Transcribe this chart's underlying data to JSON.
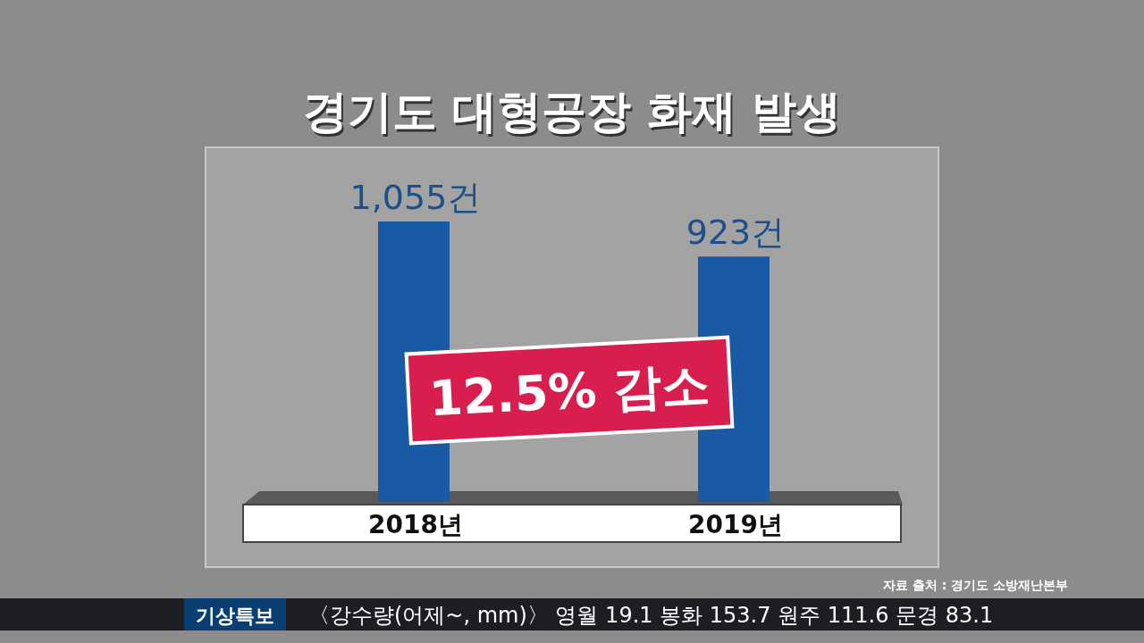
{
  "chart_data": {
    "type": "bar",
    "title": "경기도 대형공장 화재 발생",
    "categories": [
      "2018년",
      "2019년"
    ],
    "values": [
      1055,
      923
    ],
    "value_labels": [
      "1,055건",
      "923건"
    ],
    "color": "#1a5aa5",
    "annotations": [
      "12.5% 감소",
      "자료 출처 : 경기도 소방재난본부",
      "기상특보",
      "〈강수량(어제~, mm)〉 영월 19.1 봉화 153.7 원주 111.6 문경 83.1"
    ]
  }
}
